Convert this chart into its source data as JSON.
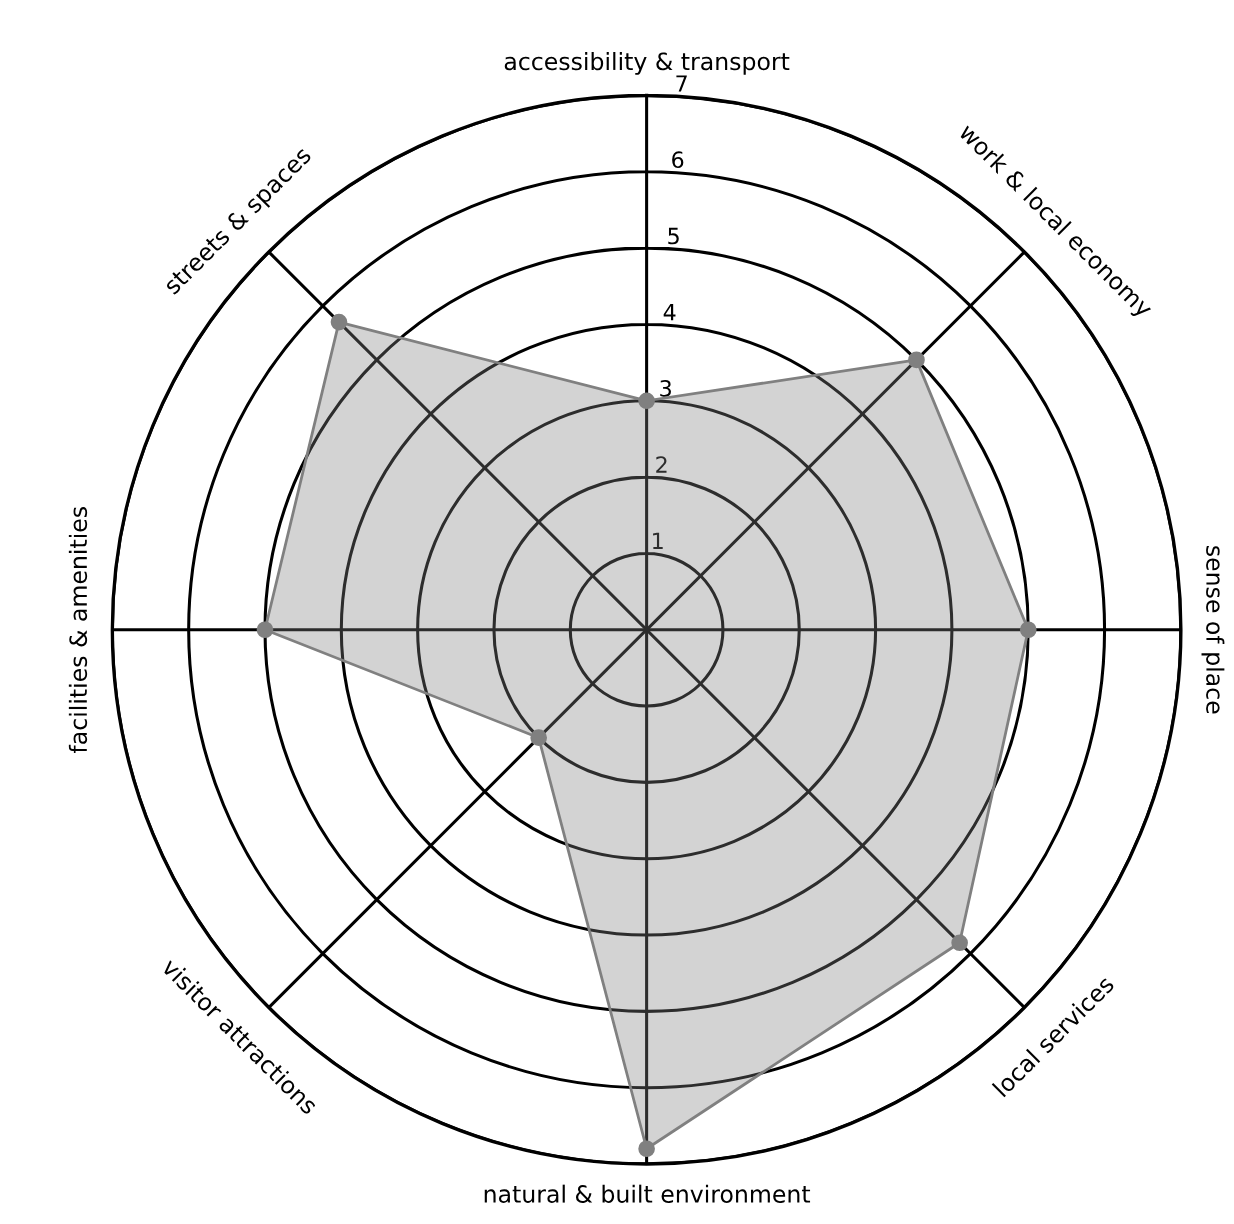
{
  "chart_data": {
    "type": "radar",
    "categories": [
      "accessibility & transport",
      "work & local economy",
      "sense of place",
      "local services",
      "natural & built environment",
      "visitor attractions",
      "facilities & amenities",
      "streets & spaces"
    ],
    "series": [
      {
        "color": "#808080",
        "values": [
          3,
          5,
          5,
          5.8,
          6.8,
          2,
          5,
          5.7
        ]
      }
    ],
    "ylim": [
      0,
      7
    ],
    "yticks": [
      1,
      2,
      3,
      4,
      5,
      6,
      7
    ],
    "grid": true,
    "marker": "circle"
  }
}
